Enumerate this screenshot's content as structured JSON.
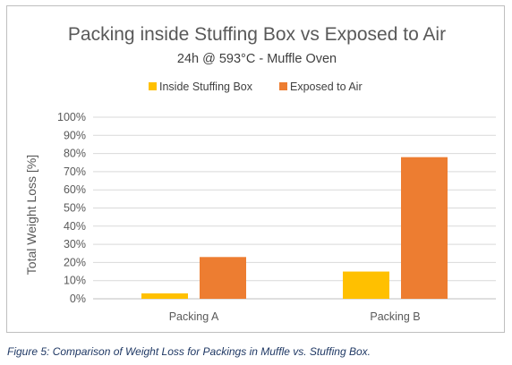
{
  "chart_data": {
    "type": "bar",
    "title": "Packing inside Stuffing Box vs Exposed to Air",
    "subtitle": "24h @ 593°C - Muffle Oven",
    "ylabel": "Total Weight Loss [%]",
    "xlabel": "",
    "categories": [
      "Packing A",
      "Packing B"
    ],
    "series": [
      {
        "name": "Inside Stuffing Box",
        "values": [
          3,
          15
        ],
        "color": "#FFC000"
      },
      {
        "name": "Exposed to Air",
        "values": [
          23,
          78
        ],
        "color": "#ED7D31"
      }
    ],
    "ylim": [
      0,
      100
    ],
    "yticks": [
      "0%",
      "10%",
      "20%",
      "30%",
      "40%",
      "50%",
      "60%",
      "70%",
      "80%",
      "90%",
      "100%"
    ],
    "legend_position": "top",
    "grid": true
  },
  "caption": "Figure 5: Comparison of Weight Loss for Packings in Muffle vs. Stuffing Box."
}
